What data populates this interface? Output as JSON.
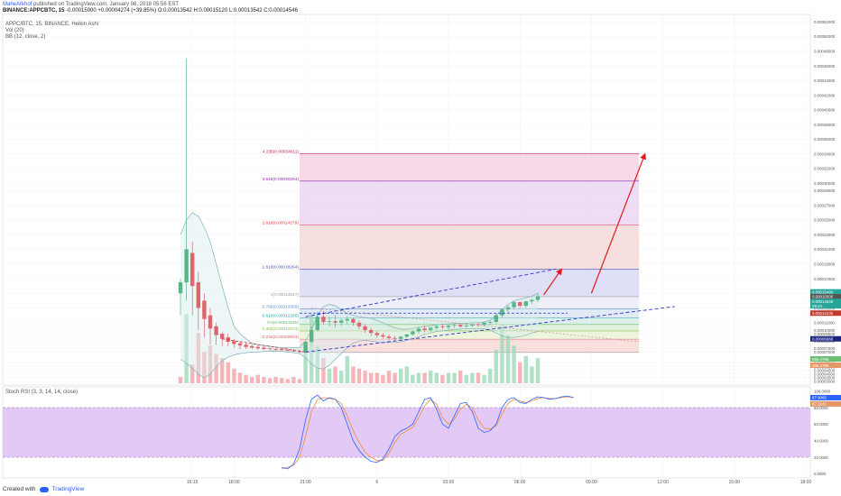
{
  "header": {
    "author": "MaheArkhof",
    "published": "published on TradingView.com, January 06, 2018 05:56 EST",
    "symbol_line": "BINANCE:APPCBTC, 15",
    "ohlc_line": "-0.00015000 +0.00004274 (+39.85%) O:0.00013542 H:0.00015120 L:0.00013542 C:0.00014546"
  },
  "indicators": {
    "title": "APPC/BTC, 15, BINANCE, Heikin Ashi",
    "vol": "Vol (20)",
    "bb": "BB (12, close, 2)",
    "stoch": "Stoch RSI (3, 3, 14, 14, close)"
  },
  "footer": {
    "created": "Created with",
    "brand": "TradingView"
  },
  "colors": {
    "up": "#56b786",
    "down": "#e0646c",
    "bb": "#7fb3b8",
    "trend": "#2d33c9",
    "arrow": "#e01b1b",
    "stoch_k": "#2962ff",
    "stoch_d": "#f08a3c",
    "stoch_band": "#d9b7f2"
  },
  "chart_data": {
    "type": "candlestick",
    "price_axis": {
      "range": [
        2.5e-06,
        5.3e-05
      ],
      "ticks": [
        {
          "v": 5.2e-05,
          "label": "0.00052000"
        },
        {
          "v": 5e-05,
          "label": "0.00050000"
        },
        {
          "v": 4.8e-05,
          "label": "0.00048000"
        },
        {
          "v": 4.6e-05,
          "label": "0.00046000"
        },
        {
          "v": 4.4e-05,
          "label": "0.00044000"
        },
        {
          "v": 4.2e-05,
          "label": "0.00042000"
        },
        {
          "v": 4e-05,
          "label": "0.00040000"
        },
        {
          "v": 3.8e-05,
          "label": "0.00038000"
        },
        {
          "v": 3.6e-05,
          "label": "0.00036000"
        },
        {
          "v": 3.4e-05,
          "label": "0.00034000"
        },
        {
          "v": 3.2e-05,
          "label": "0.00032000"
        },
        {
          "v": 3e-05,
          "label": "0.00030000"
        },
        {
          "v": 2.9e-05,
          "label": "0.00029000"
        },
        {
          "v": 2.7e-05,
          "label": "0.00027000"
        },
        {
          "v": 2.5e-05,
          "label": "0.00025000"
        },
        {
          "v": 2.3e-05,
          "label": "0.00023000"
        },
        {
          "v": 2.1e-05,
          "label": "0.00021000"
        },
        {
          "v": 1.9e-05,
          "label": "0.00019000"
        },
        {
          "v": 1.7e-05,
          "label": "0.00017000"
        },
        {
          "v": 1.5e-05,
          "label": "0.00015000"
        },
        {
          "v": 1.3e-05,
          "label": "0.00013000"
        },
        {
          "v": 1.1e-05,
          "label": "0.00011000"
        },
        {
          "v": 1e-05,
          "label": "0.00010000"
        },
        {
          "v": 9.5e-06,
          "label": "0.00009500"
        },
        {
          "v": 8.5e-06,
          "label": "0.00008500"
        },
        {
          "v": 7.5e-06,
          "label": "0.00007500"
        },
        {
          "v": 7e-06,
          "label": "0.00007000"
        },
        {
          "v": 5.5e-06,
          "label": "0.00005500"
        },
        {
          "v": 5e-06,
          "label": "0.00005000"
        },
        {
          "v": 4.5e-06,
          "label": "0.00004500"
        },
        {
          "v": 4e-06,
          "label": "0.00004000"
        },
        {
          "v": 3.5e-06,
          "label": "0.00003500"
        },
        {
          "v": 3e-06,
          "label": "0.00003000"
        }
      ]
    },
    "time_axis": [
      {
        "label": "16:15",
        "i": 2
      },
      {
        "label": "18:00",
        "i": 9
      },
      {
        "label": "21:00",
        "i": 21
      },
      {
        "label": "6",
        "i": 33
      },
      {
        "label": "03:00",
        "i": 45
      },
      {
        "label": "06:00",
        "i": 57
      },
      {
        "label": "09:00",
        "i": 69
      },
      {
        "label": "12:00",
        "i": 81
      },
      {
        "label": "15:00",
        "i": 93
      },
      {
        "label": "18:00",
        "i": 105
      },
      {
        "label": "21:00",
        "i": 117
      },
      {
        "label": "7",
        "i": 129
      }
    ],
    "candles": [
      [
        1.5e-05,
        1.7e-05,
        1.65e-05,
        1.2e-05
      ],
      [
        1.65e-05,
        4.7e-05,
        2.1e-05,
        1.4e-05
      ],
      [
        2.05e-05,
        2.2e-05,
        1.6e-05,
        1.2e-05
      ],
      [
        1.65e-05,
        1.8e-05,
        1.3e-05,
        1e-05
      ],
      [
        1.4e-05,
        1.5e-05,
        1.15e-05,
        9e-06
      ],
      [
        1.2e-05,
        1.3e-05,
        1.02e-05,
        8e-06
      ],
      [
        1.05e-05,
        1.1e-05,
        9.3e-06,
        8e-06
      ],
      [
        9.5e-06,
        9.8e-06,
        8.8e-06,
        7.8e-06
      ],
      [
        9e-06,
        9.5e-06,
        8.4e-06,
        7.8e-06
      ],
      [
        8.5e-06,
        8.8e-06,
        8.1e-06,
        7.6e-06
      ],
      [
        8.2e-06,
        8.5e-06,
        7.9e-06,
        7.4e-06
      ],
      [
        8e-06,
        8.3e-06,
        7.7e-06,
        7.4e-06
      ],
      [
        7.8e-06,
        8.1e-06,
        7.6e-06,
        7.4e-06
      ],
      [
        7.7e-06,
        8e-06,
        7.5e-06,
        7.3e-06
      ],
      [
        7.6e-06,
        7.8e-06,
        7.4e-06,
        7.3e-06
      ],
      [
        7.5e-06,
        7.7e-06,
        7.4e-06,
        7.2e-06
      ],
      [
        7.4e-06,
        7.6e-06,
        7.3e-06,
        7.2e-06
      ],
      [
        7.4e-06,
        7.5e-06,
        7.3e-06,
        7.2e-06
      ],
      [
        7.3e-06,
        7.5e-06,
        7.2e-06,
        7.1e-06
      ],
      [
        7.2e-06,
        7.4e-06,
        7.1e-06,
        7e-06
      ],
      [
        7.1e-06,
        7.3e-06,
        7e-06,
        7e-06
      ],
      [
        7e-06,
        8.5e-06,
        8.4e-06,
        6.9e-06
      ],
      [
        8.4e-06,
        1.05e-05,
        1e-05,
        8.2e-06
      ],
      [
        1e-05,
        1.25e-05,
        1.18e-05,
        9.8e-06
      ],
      [
        1.18e-05,
        1.26e-05,
        1.11e-05,
        1.08e-05
      ],
      [
        1.11e-05,
        1.18e-05,
        1.12e-05,
        1.05e-05
      ],
      [
        1.12e-05,
        1.2e-05,
        1.1e-05,
        1.04e-05
      ],
      [
        1.1e-05,
        1.16e-05,
        1.13e-05,
        1.06e-05
      ],
      [
        1.13e-05,
        1.19e-05,
        1.15e-05,
        1.08e-05
      ],
      [
        1.15e-05,
        1.17e-05,
        1.1e-05,
        1.06e-05
      ],
      [
        1.1e-05,
        1.13e-05,
        1.05e-05,
        1.01e-05
      ],
      [
        1.05e-05,
        1.08e-05,
        1e-05,
        9.6e-06
      ],
      [
        1e-05,
        1.03e-05,
        9.6e-06,
        9.2e-06
      ],
      [
        9.6e-06,
        9.9e-06,
        9.3e-06,
        8.9e-06
      ],
      [
        9.3e-06,
        9.6e-06,
        9.1e-06,
        8.8e-06
      ],
      [
        9.1e-06,
        9.4e-06,
        8.9e-06,
        8.6e-06
      ],
      [
        8.9e-06,
        9.2e-06,
        8.8e-06,
        8.5e-06
      ],
      [
        8.8e-06,
        9.2e-06,
        9.1e-06,
        8.6e-06
      ],
      [
        9.1e-06,
        9.5e-06,
        9.4e-06,
        8.9e-06
      ],
      [
        9.4e-06,
        1e-05,
        9.8e-06,
        9.2e-06
      ],
      [
        9.8e-06,
        1.04e-05,
        1.02e-05,
        9.5e-06
      ],
      [
        1.02e-05,
        1.06e-05,
        1e-05,
        9.7e-06
      ],
      [
        1e-05,
        1.04e-05,
        1.03e-05,
        9.7e-06
      ],
      [
        1.03e-05,
        1.07e-05,
        1.05e-05,
        1e-05
      ],
      [
        1.05e-05,
        1.08e-05,
        1.04e-05,
        1.01e-05
      ],
      [
        1.04e-05,
        1.08e-05,
        1.06e-05,
        1.01e-05
      ],
      [
        1.06e-05,
        1.09e-05,
        1.07e-05,
        1.03e-05
      ],
      [
        1.07e-05,
        1.09e-05,
        1.05e-05,
        1.03e-05
      ],
      [
        1.05e-05,
        1.08e-05,
        1.06e-05,
        1.03e-05
      ],
      [
        1.06e-05,
        1.09e-05,
        1.08e-05,
        1.04e-05
      ],
      [
        1.08e-05,
        1.1e-05,
        1.07e-05,
        1.04e-05
      ],
      [
        1.07e-05,
        1.11e-05,
        1.1e-05,
        1.05e-05
      ],
      [
        1.1e-05,
        1.13e-05,
        1.11e-05,
        1.07e-05
      ],
      [
        1.11e-05,
        1.22e-05,
        1.2e-05,
        1.09e-05
      ],
      [
        1.2e-05,
        1.3e-05,
        1.28e-05,
        1.17e-05
      ],
      [
        1.28e-05,
        1.34e-05,
        1.31e-05,
        1.24e-05
      ],
      [
        1.31e-05,
        1.4e-05,
        1.38e-05,
        1.28e-05
      ],
      [
        1.38e-05,
        1.39e-05,
        1.33e-05,
        1.3e-05
      ],
      [
        1.33e-05,
        1.4e-05,
        1.39e-05,
        1.3e-05
      ],
      [
        1.39e-05,
        1.43e-05,
        1.41e-05,
        1.35e-05
      ],
      [
        1.41e-05,
        1.51e-05,
        1.46e-05,
        1.38e-05
      ]
    ],
    "bb_upper": [
      2.3e-05,
      2.5e-05,
      2.6e-05,
      2.55e-05,
      2.4e-05,
      2.2e-05,
      1.9e-05,
      1.6e-05,
      1.3e-05,
      1.05e-05,
      9.5e-06,
      8.8e-06,
      8.2e-06,
      8e-06,
      7.9e-06,
      7.8e-06,
      7.7e-06,
      7.6e-06,
      7.6e-06,
      7.6e-06,
      7.6e-06,
      8.5e-06,
      1e-05,
      1.2e-05,
      1.32e-05,
      1.35e-05,
      1.33e-05,
      1.28e-05,
      1.22e-05,
      1.2e-05,
      1.18e-05,
      1.17e-05,
      1.16e-05,
      1.13e-05,
      1.1e-05,
      1.06e-05,
      1.03e-05,
      1.01e-05,
      1.01e-05,
      1.02e-05,
      1.04e-05,
      1.05e-05,
      1.06e-05,
      1.07e-05,
      1.08e-05,
      1.08e-05,
      1.09e-05,
      1.09e-05,
      1.09e-05,
      1.1e-05,
      1.1e-05,
      1.11e-05,
      1.13e-05,
      1.2e-05,
      1.28e-05,
      1.35e-05,
      1.4e-05,
      1.42e-05,
      1.44e-05,
      1.46e-05,
      1.5e-05
    ],
    "bb_lower": [
      6e-06,
      5.5e-06,
      4.8e-06,
      4e-06,
      3.5e-06,
      4e-06,
      5e-06,
      5.8e-06,
      6.3e-06,
      6.6e-06,
      6.8e-06,
      6.9e-06,
      7e-06,
      7e-06,
      7.1e-06,
      7.1e-06,
      7.1e-06,
      7.1e-06,
      7e-06,
      6.9e-06,
      6.8e-06,
      6.2e-06,
      5.4e-06,
      4.8e-06,
      4.7e-06,
      5.2e-06,
      6e-06,
      6.8e-06,
      7.6e-06,
      8.2e-06,
      8.5e-06,
      8.6e-06,
      8.5e-06,
      8.4e-06,
      8.3e-06,
      8.3e-06,
      8.3e-06,
      8.4e-06,
      8.6e-06,
      8.8e-06,
      9.1e-06,
      9.4e-06,
      9.6e-06,
      9.8e-06,
      9.9e-06,
      1e-05,
      1.01e-05,
      1.01e-05,
      1.02e-05,
      1.02e-05,
      1.02e-05,
      1.02e-05,
      1e-05,
      9.6e-06,
      9.2e-06,
      9e-06,
      9e-06,
      9.1e-06,
      9.3e-06,
      9.6e-06,
      9.8e-06
    ],
    "volume": {
      "range": [
        0,
        4300
      ],
      "values": [
        300,
        3300,
        900,
        2400,
        1500,
        1800,
        1400,
        1200,
        1000,
        700,
        500,
        400,
        300,
        400,
        300,
        250,
        300,
        250,
        200,
        300,
        200,
        1600,
        3300,
        1800,
        1200,
        700,
        800,
        600,
        1300,
        800,
        700,
        600,
        500,
        500,
        400,
        600,
        500,
        700,
        800,
        400,
        500,
        500,
        600,
        500,
        400,
        500,
        500,
        600,
        400,
        500,
        500,
        400,
        700,
        1600,
        2800,
        2300,
        1800,
        1000,
        1300,
        800,
        1200
      ],
      "up": [
        false,
        true,
        false,
        false,
        false,
        false,
        false,
        false,
        false,
        false,
        false,
        false,
        false,
        false,
        false,
        false,
        false,
        false,
        false,
        false,
        false,
        true,
        true,
        true,
        false,
        true,
        false,
        true,
        true,
        false,
        false,
        false,
        false,
        false,
        false,
        false,
        false,
        true,
        true,
        true,
        true,
        false,
        true,
        true,
        false,
        true,
        true,
        false,
        true,
        true,
        false,
        true,
        true,
        true,
        true,
        true,
        true,
        false,
        true,
        true,
        true
      ],
      "last_labels": [
        "655.4736",
        "466.4789"
      ]
    },
    "fib_levels": [
      {
        "ratio": "0",
        "price": 6.95e-06,
        "label": "0(0.00006951)",
        "color": "#9e9e9e"
      },
      {
        "ratio": "0.236",
        "price": 8.75e-06,
        "label": "0.236(0.00009993)",
        "color": "#e06666"
      },
      {
        "ratio": "0.382",
        "price": 9.88e-06,
        "label": "0.382(0.00010874)",
        "color": "#8bc34a"
      },
      {
        "ratio": "0.5",
        "price": 1.076e-05,
        "label": "0.5(0.00011535)",
        "color": "#66bb6a"
      },
      {
        "ratio": "0.618",
        "price": 1.164e-05,
        "label": "0.618(0.00012295)",
        "color": "#26a69a"
      },
      {
        "ratio": "0.786",
        "price": 1.29e-05,
        "label": "0.786(0.00013359)",
        "color": "#5c8fd6"
      },
      {
        "ratio": "1",
        "price": 1.455e-05,
        "label": "1(0.00014547)",
        "color": "#9e9e9e"
      },
      {
        "ratio": "1.618",
        "price": 1.826e-05,
        "label": "1.618(0.00018264)",
        "color": "#3f51b5"
      },
      {
        "ratio": "2.618",
        "price": 2.428e-05,
        "label": "2.618(0.00024279)",
        "color": "#e53935"
      },
      {
        "ratio": "3.618",
        "price": 3.029e-05,
        "label": "3.618(0.00030294)",
        "color": "#8e24aa"
      },
      {
        "ratio": "4.236",
        "price": 3.401e-05,
        "label": "4.236(0.00034011)",
        "color": "#c2185b"
      }
    ],
    "price_tags": [
      {
        "price": 1.52e-05,
        "label": "0.00015490",
        "color": "#26a69a"
      },
      {
        "price": 1.455e-05,
        "label": "0.00015000",
        "color": "#555555"
      },
      {
        "price": 1.39e-05,
        "label": "0.00014546",
        "color": "#26a69a"
      },
      {
        "price": 1.33e-05,
        "label": "05:24",
        "color": "#26a69a"
      },
      {
        "price": 1.23e-05,
        "label": "0.00012230",
        "color": "#c0392b"
      },
      {
        "price": 8.8e-06,
        "label": "0.00006968",
        "color": "#1a237e"
      }
    ],
    "stoch": {
      "range": [
        -5,
        105
      ],
      "ticks": [
        {
          "v": 100,
          "label": "100.0000"
        },
        {
          "v": 80,
          "label": "80.0000"
        },
        {
          "v": 60,
          "label": "60.0000"
        },
        {
          "v": 40,
          "label": "40.0000"
        },
        {
          "v": 20,
          "label": "20.0000"
        },
        {
          "v": 0,
          "label": "0.0000"
        }
      ],
      "band": [
        20,
        80
      ],
      "start": 17,
      "k": [
        8,
        6,
        12,
        30,
        65,
        90,
        95,
        88,
        92,
        90,
        80,
        60,
        40,
        28,
        20,
        15,
        14,
        18,
        30,
        45,
        52,
        55,
        60,
        75,
        90,
        92,
        78,
        60,
        55,
        70,
        85,
        86,
        75,
        55,
        50,
        52,
        60,
        80,
        90,
        92,
        86,
        85,
        90,
        93,
        92,
        90,
        91,
        93,
        94,
        92
      ],
      "d": [
        6,
        8,
        10,
        20,
        45,
        75,
        90,
        92,
        91,
        90,
        85,
        70,
        52,
        38,
        26,
        20,
        16,
        16,
        25,
        38,
        48,
        52,
        56,
        68,
        82,
        90,
        84,
        68,
        60,
        66,
        78,
        84,
        80,
        65,
        55,
        54,
        58,
        72,
        85,
        90,
        88,
        86,
        88,
        91,
        92,
        91,
        91,
        92,
        93,
        92
      ],
      "last_labels": [
        "87.9065",
        "87.1241"
      ]
    }
  }
}
